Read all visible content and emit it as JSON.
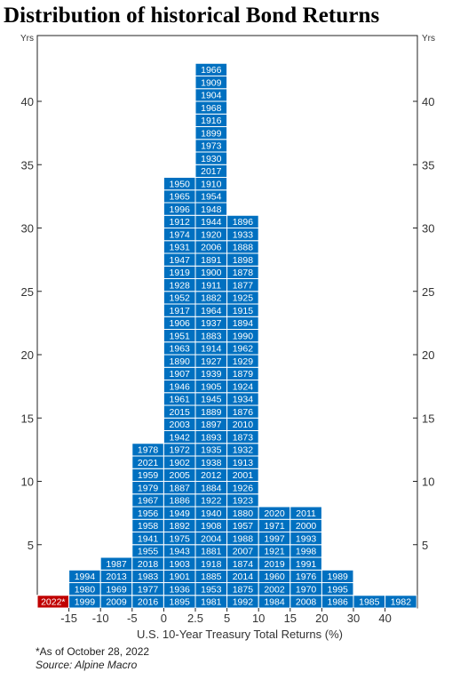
{
  "title": "Distribution of historical Bond Returns",
  "chart_data": {
    "type": "bar",
    "title": "Distribution of historical Bond Returns",
    "xlabel": "U.S. 10-Year Treasury Total Returns (%)",
    "ylabel": "Yrs",
    "ylim": [
      0,
      44
    ],
    "yticks": [
      5,
      10,
      15,
      20,
      25,
      30,
      35,
      40
    ],
    "grid": false,
    "x_tick_labels": [
      "-15",
      "-10",
      "-5",
      "0",
      "2.5",
      "5",
      "10",
      "15",
      "20",
      "30",
      "40"
    ],
    "columns": [
      {
        "bin_start": "<-15",
        "years": [
          "2022*"
        ],
        "highlight": true
      },
      {
        "bin_start": "-15",
        "years": [
          "1999",
          "1980",
          "1994"
        ]
      },
      {
        "bin_start": "-10",
        "years": [
          "2009",
          "1969",
          "2013",
          "1987"
        ]
      },
      {
        "bin_start": "-5",
        "years": [
          "2016",
          "1977",
          "1983",
          "2018",
          "1955",
          "1941",
          "1958",
          "1956",
          "1967",
          "1979",
          "1959",
          "2021",
          "1978"
        ]
      },
      {
        "bin_start": "0",
        "years": [
          "1895",
          "1936",
          "1901",
          "1903",
          "1943",
          "1975",
          "1892",
          "1949",
          "1886",
          "1887",
          "2005",
          "1902",
          "1972",
          "1942",
          "2003",
          "2015",
          "1961",
          "1946",
          "1907",
          "1890",
          "1963",
          "1951",
          "1906",
          "1917",
          "1952",
          "1928",
          "1919",
          "1947",
          "1931",
          "1974",
          "1912",
          "1996",
          "1965",
          "1950"
        ]
      },
      {
        "bin_start": "2.5",
        "years": [
          "1981",
          "1953",
          "1885",
          "1918",
          "1881",
          "2004",
          "1908",
          "1940",
          "1922",
          "1884",
          "2012",
          "1938",
          "1935",
          "1893",
          "1897",
          "1889",
          "1945",
          "1905",
          "1939",
          "1927",
          "1914",
          "1883",
          "1937",
          "1964",
          "1882",
          "1911",
          "1900",
          "1891",
          "2006",
          "1920",
          "1944",
          "1948",
          "1954",
          "1910",
          "2017",
          "1930",
          "1973",
          "1899",
          "1916",
          "1968",
          "1904",
          "1909",
          "1966"
        ]
      },
      {
        "bin_start": "5",
        "years": [
          "1992",
          "1875",
          "2014",
          "1874",
          "2007",
          "1988",
          "1957",
          "1880",
          "1923",
          "1926",
          "2001",
          "1913",
          "1932",
          "1873",
          "2010",
          "1876",
          "1934",
          "1924",
          "1879",
          "1929",
          "1962",
          "1990",
          "1894",
          "1915",
          "1925",
          "1877",
          "1878",
          "1898",
          "1888",
          "1933",
          "1896"
        ]
      },
      {
        "bin_start": "10",
        "years": [
          "1984",
          "2002",
          "1960",
          "2019",
          "1921",
          "1997",
          "1971",
          "2020"
        ]
      },
      {
        "bin_start": "15",
        "years": [
          "2008",
          "1970",
          "1976",
          "1991",
          "1998",
          "1993",
          "2000",
          "2011"
        ]
      },
      {
        "bin_start": "20",
        "years": [
          "1986",
          "1995",
          "1989"
        ]
      },
      {
        "bin_start": "30",
        "years": [
          "1985"
        ]
      },
      {
        "bin_start": "40",
        "years": [
          "1982"
        ]
      }
    ],
    "values": [
      1,
      3,
      4,
      13,
      34,
      43,
      31,
      8,
      8,
      3,
      1,
      1
    ],
    "colors": {
      "bar": "#0070c0",
      "highlight": "#c00000",
      "cell_border": "#ffffff",
      "label": "#ffffff"
    }
  },
  "notes": {
    "asof": "*As of October 28, 2022",
    "source": "Source: Alpine Macro"
  }
}
